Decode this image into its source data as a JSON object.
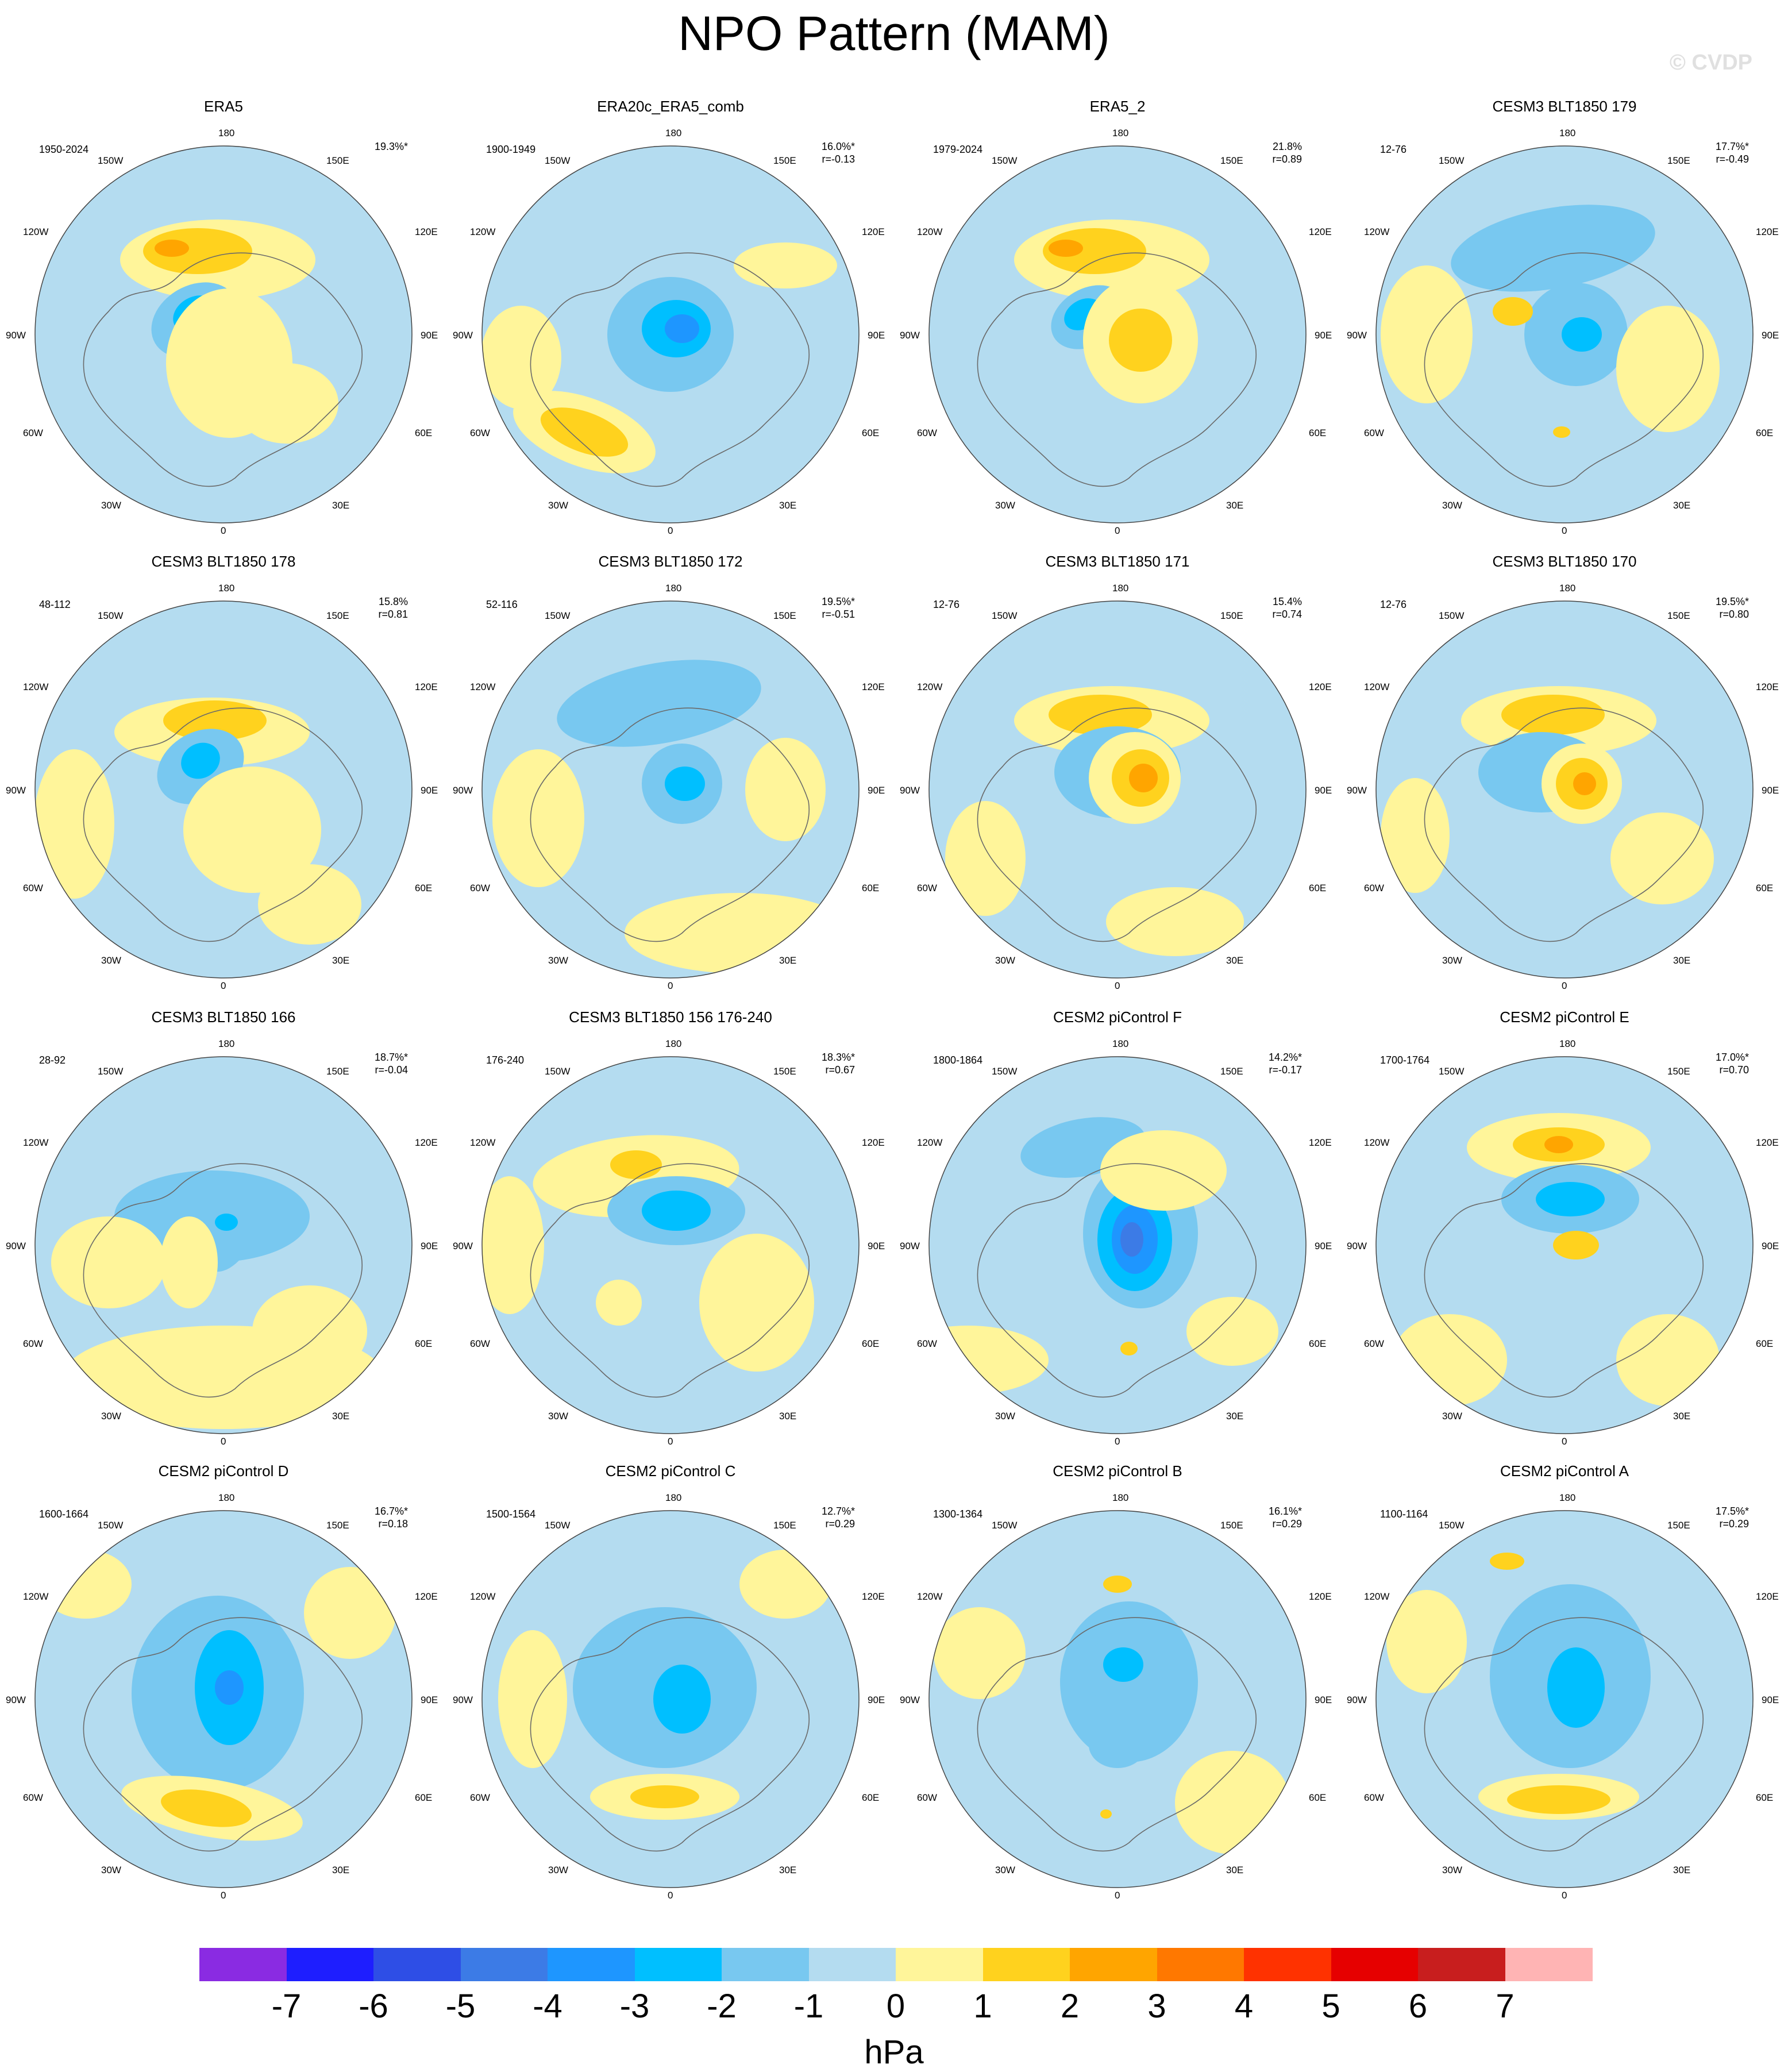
{
  "title": "NPO Pattern (MAM)",
  "watermark": "© CVDP",
  "lon_labels": {
    "top": "180",
    "left_upper": "150W",
    "right_upper": "150E",
    "left_mid_upper": "120W",
    "right_mid_upper": "120E",
    "left_mid": "90W",
    "right_mid": "90E",
    "left_mid_lower": "60W",
    "right_mid_lower": "60E",
    "left_lower": "30W",
    "right_lower": "30E",
    "bottom": "0"
  },
  "panels": [
    {
      "name": "ERA5",
      "period": "1950-2024",
      "pct": "19.3%*",
      "r": ""
    },
    {
      "name": "ERA20c_ERA5_comb",
      "period": "1900-1949",
      "pct": "16.0%*",
      "r": "r=-0.13"
    },
    {
      "name": "ERA5_2",
      "period": "1979-2024",
      "pct": "21.8%",
      "r": "r=0.89"
    },
    {
      "name": "CESM3 BLT1850 179",
      "period": "12-76",
      "pct": "17.7%*",
      "r": "r=-0.49"
    },
    {
      "name": "CESM3 BLT1850 178",
      "period": "48-112",
      "pct": "15.8%",
      "r": "r=0.81"
    },
    {
      "name": "CESM3 BLT1850 172",
      "period": "52-116",
      "pct": "19.5%*",
      "r": "r=-0.51"
    },
    {
      "name": "CESM3 BLT1850 171",
      "period": "12-76",
      "pct": "15.4%",
      "r": "r=0.74"
    },
    {
      "name": "CESM3 BLT1850 170",
      "period": "12-76",
      "pct": "19.5%*",
      "r": "r=0.80"
    },
    {
      "name": "CESM3 BLT1850 166",
      "period": "28-92",
      "pct": "18.7%*",
      "r": "r=-0.04"
    },
    {
      "name": "CESM3 BLT1850 156 176-240",
      "period": "176-240",
      "pct": "18.3%*",
      "r": "r=0.67"
    },
    {
      "name": "CESM2 piControl F",
      "period": "1800-1864",
      "pct": "14.2%*",
      "r": "r=-0.17"
    },
    {
      "name": "CESM2 piControl E",
      "period": "1700-1764",
      "pct": "17.0%*",
      "r": "r=0.70"
    },
    {
      "name": "CESM2 piControl D",
      "period": "1600-1664",
      "pct": "16.7%*",
      "r": "r=0.18"
    },
    {
      "name": "CESM2 piControl C",
      "period": "1500-1564",
      "pct": "12.7%*",
      "r": "r=0.29"
    },
    {
      "name": "CESM2 piControl B",
      "period": "1300-1364",
      "pct": "16.1%*",
      "r": "r=0.29"
    },
    {
      "name": "CESM2 piControl A",
      "period": "1100-1164",
      "pct": "17.5%*",
      "r": "r=0.29"
    }
  ],
  "colorbar": {
    "units": "hPa",
    "labels": [
      "-7",
      "-6",
      "-5",
      "-4",
      "-3",
      "-2",
      "-1",
      "0",
      "1",
      "2",
      "3",
      "4",
      "5",
      "6",
      "7"
    ],
    "colors": [
      "#8a2be2",
      "#1e1eff",
      "#2e4ee6",
      "#3c7be6",
      "#1e96ff",
      "#00bfff",
      "#78c8f0",
      "#b4dcf0",
      "#fff59a",
      "#ffd21e",
      "#ffa500",
      "#ff7800",
      "#ff3200",
      "#e60000",
      "#c81e1e",
      "#ffb4b4"
    ]
  },
  "pattern_colors": {
    "ocean_neg": "#b4dcf0",
    "pos": "#fff59a",
    "neg2": "#78c8f0",
    "neg3": "#00bfff",
    "neg4": "#1e96ff",
    "neg5": "#3c7be6",
    "pos2": "#ffd21e",
    "pos3": "#ffa500"
  }
}
